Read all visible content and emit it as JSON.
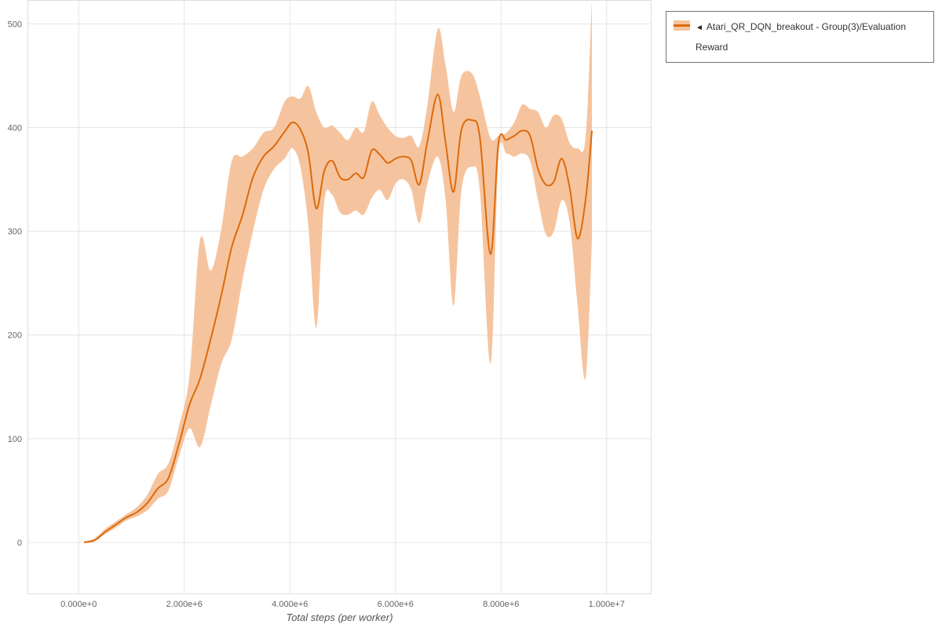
{
  "legend": {
    "collapse_icon": "◄",
    "label": "Atari_QR_DQN_breakout - Group(3)/Evaluation Reward"
  },
  "chart_data": {
    "type": "line",
    "title": "",
    "xlabel": "Total steps (per worker)",
    "ylabel": "",
    "grid": true,
    "legend_position": "outside-top-right",
    "x_domain": [
      -970000,
      10850000
    ],
    "y_domain": [
      -50,
      523
    ],
    "x_ticks": {
      "values": [
        0,
        2000000,
        4000000,
        6000000,
        8000000,
        10000000
      ],
      "labels": [
        "0.000e+0",
        "2.000e+6",
        "4.000e+6",
        "6.000e+6",
        "8.000e+6",
        "1.000e+7"
      ]
    },
    "y_ticks": {
      "values": [
        0,
        100,
        200,
        300,
        400,
        500
      ],
      "labels": [
        "0",
        "100",
        "200",
        "300",
        "400",
        "500"
      ]
    },
    "series": [
      {
        "name": "Atari_QR_DQN_breakout - Group(3)/Evaluation Reward",
        "color": "#dc6a0c",
        "band_color": "#f5c49e",
        "x": [
          100000,
          300000,
          500000,
          700000,
          900000,
          1100000,
          1300000,
          1500000,
          1700000,
          1900000,
          2100000,
          2300000,
          2500000,
          2700000,
          2900000,
          3100000,
          3300000,
          3500000,
          3700000,
          3900000,
          4050000,
          4200000,
          4350000,
          4500000,
          4650000,
          4800000,
          4950000,
          5100000,
          5250000,
          5400000,
          5550000,
          5700000,
          5850000,
          6000000,
          6150000,
          6300000,
          6450000,
          6600000,
          6800000,
          6950000,
          7100000,
          7250000,
          7450000,
          7600000,
          7800000,
          7950000,
          8100000,
          8250000,
          8400000,
          8550000,
          8700000,
          8850000,
          9000000,
          9150000,
          9300000,
          9450000,
          9600000,
          9720000
        ],
        "mean": [
          0,
          2,
          10,
          17,
          24,
          29,
          38,
          52,
          62,
          95,
          133,
          158,
          196,
          238,
          285,
          315,
          352,
          372,
          382,
          396,
          405,
          398,
          375,
          322,
          358,
          368,
          352,
          350,
          356,
          352,
          378,
          374,
          366,
          370,
          372,
          368,
          345,
          385,
          432,
          385,
          338,
          398,
          407,
          390,
          278,
          385,
          388,
          392,
          397,
          392,
          360,
          345,
          348,
          370,
          342,
          293,
          330,
          397
        ],
        "upper": [
          1,
          4,
          13,
          20,
          27,
          34,
          46,
          66,
          76,
          112,
          162,
          292,
          262,
          302,
          368,
          372,
          380,
          395,
          400,
          425,
          430,
          428,
          440,
          415,
          400,
          402,
          395,
          388,
          400,
          396,
          425,
          412,
          400,
          392,
          390,
          392,
          382,
          420,
          495,
          460,
          415,
          450,
          452,
          430,
          390,
          392,
          395,
          405,
          422,
          418,
          415,
          400,
          412,
          408,
          385,
          380,
          390,
          523
        ],
        "lower": [
          0,
          1,
          8,
          14,
          21,
          25,
          31,
          42,
          50,
          83,
          110,
          92,
          132,
          172,
          196,
          252,
          300,
          340,
          360,
          370,
          380,
          362,
          305,
          207,
          328,
          335,
          318,
          316,
          320,
          316,
          332,
          340,
          330,
          346,
          350,
          340,
          308,
          345,
          372,
          330,
          228,
          340,
          362,
          338,
          172,
          370,
          375,
          372,
          375,
          368,
          330,
          297,
          300,
          330,
          308,
          228,
          158,
          290
        ]
      }
    ],
    "colors": {
      "grid": "#e4e4e4",
      "frame": "#dedede",
      "tick_text": "#646464",
      "axis_title_text": "#555555"
    }
  }
}
